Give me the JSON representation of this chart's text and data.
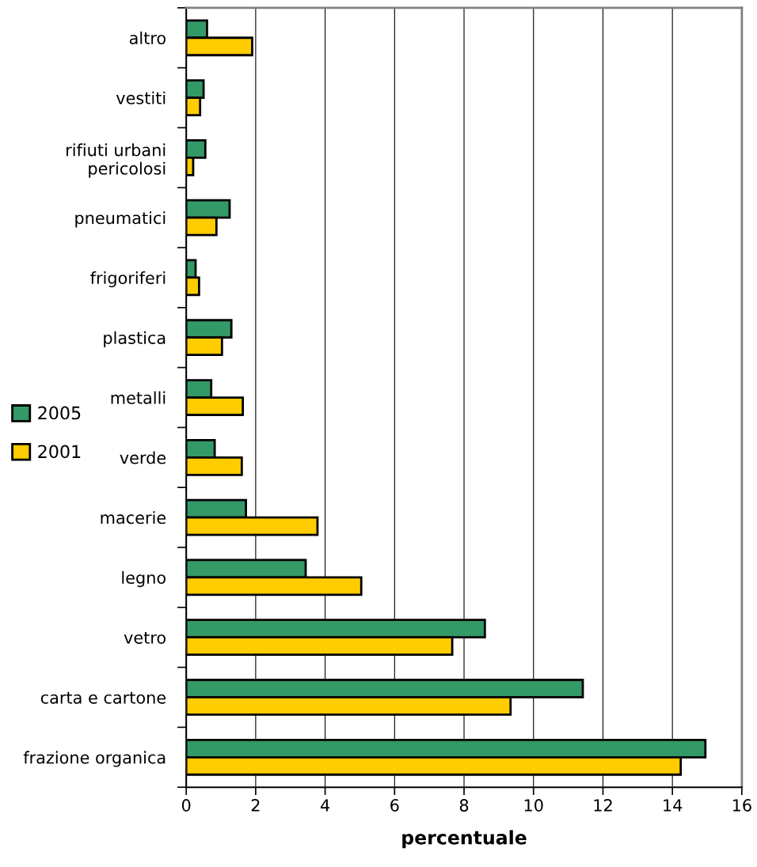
{
  "chart_data": {
    "type": "bar",
    "orientation": "horizontal",
    "xlabel": "percentuale",
    "categories": [
      "altro",
      "vestiti",
      "rifiuti urbani\npericolosi",
      "pneumatici",
      "frigoriferi",
      "plastica",
      "metalli",
      "verde",
      "macerie",
      "legno",
      "vetro",
      "carta e cartone",
      "frazione organica"
    ],
    "series": [
      {
        "name": "2005",
        "color": "#339966",
        "values": [
          0.6,
          0.5,
          0.55,
          1.25,
          0.27,
          1.3,
          0.72,
          0.82,
          1.72,
          3.44,
          8.6,
          11.42,
          14.95
        ]
      },
      {
        "name": "2001",
        "color": "#ffcc00",
        "values": [
          1.9,
          0.4,
          0.2,
          0.87,
          0.37,
          1.03,
          1.63,
          1.6,
          3.78,
          5.04,
          7.66,
          9.34,
          14.24
        ]
      }
    ],
    "xlim": [
      0,
      16
    ],
    "xticks": [
      0,
      2,
      4,
      6,
      8,
      10,
      12,
      14,
      16
    ],
    "grid": "x",
    "legend": "left"
  }
}
